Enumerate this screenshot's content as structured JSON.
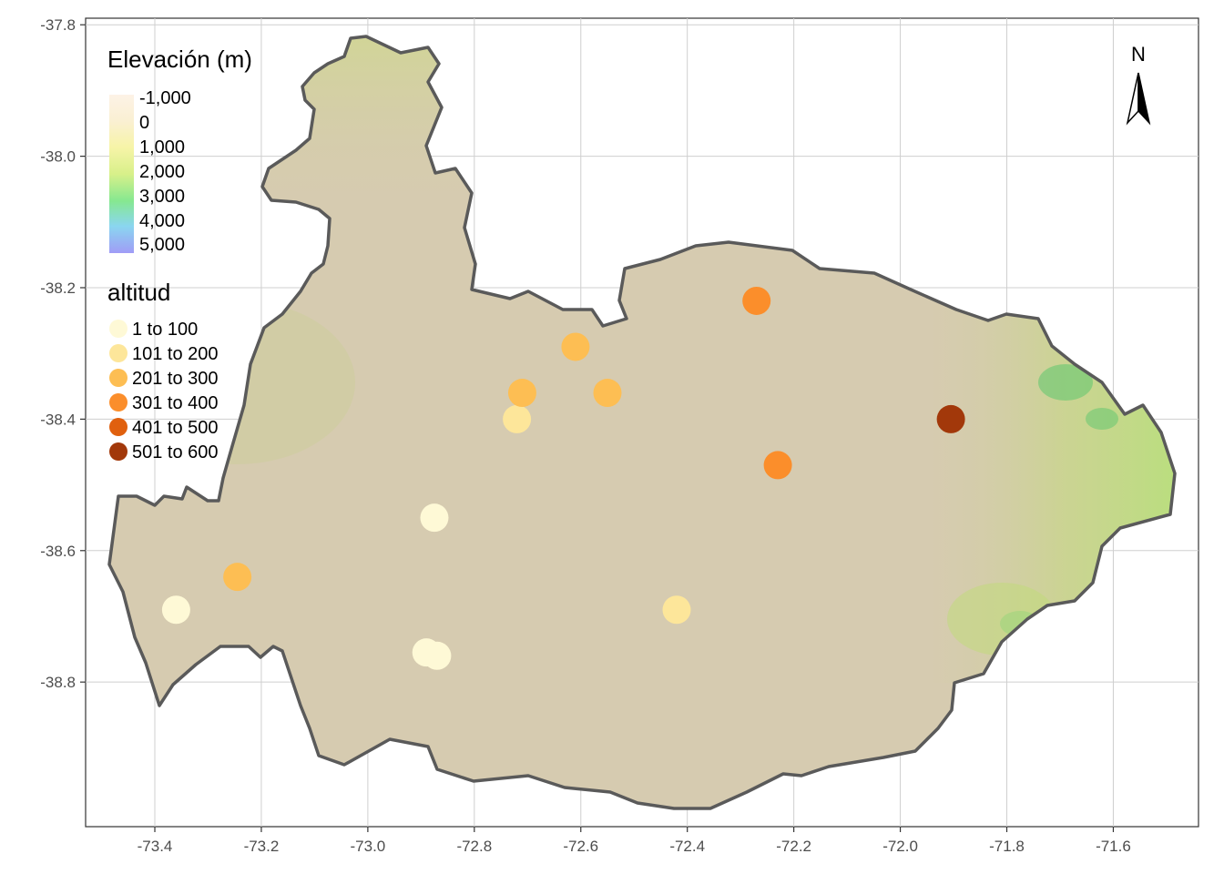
{
  "map": {
    "x_axis": {
      "range": [
        -73.53,
        -71.44
      ],
      "ticks": [
        -73.4,
        -73.2,
        -73.0,
        -72.8,
        -72.6,
        -72.4,
        -72.2,
        -72.0,
        -71.8,
        -71.6
      ],
      "tick_labels": [
        "-73.4",
        "-73.2",
        "-73.0",
        "-72.8",
        "-72.6",
        "-72.4",
        "-72.2",
        "-72.0",
        "-71.8",
        "-71.6"
      ]
    },
    "y_axis": {
      "range": [
        -39.02,
        -37.79
      ],
      "ticks": [
        -37.8,
        -38.0,
        -38.2,
        -38.4,
        -38.6,
        -38.8
      ],
      "tick_labels": [
        "-37.8",
        "-38.0",
        "-38.2",
        "-38.4",
        "-38.6",
        "-38.8"
      ]
    },
    "grid": true,
    "region_fill": "#d6cbb0",
    "region_outline_color": "#5a5a5a",
    "highland_color": "#c9d98a",
    "north_arrow": {
      "label": "N",
      "icon": "north-arrow-icon"
    }
  },
  "legend_elevation": {
    "title": "Elevación (m)",
    "labels": [
      "-1,000",
      "0",
      "1,000",
      "2,000",
      "3,000",
      "4,000",
      "5,000"
    ],
    "gradient_colors": [
      "#fdf2e6",
      "#faf0d2",
      "#f7f4a8",
      "#d8f08a",
      "#86e890",
      "#8ad6f0",
      "#a09cf6"
    ]
  },
  "legend_altitud": {
    "title": "altitud",
    "classes": [
      {
        "label": "1 to 100",
        "color": "#fef9d6"
      },
      {
        "label": "101 to 200",
        "color": "#fde69a"
      },
      {
        "label": "201 to 300",
        "color": "#fdbe53"
      },
      {
        "label": "301 to 400",
        "color": "#fb8e2b"
      },
      {
        "label": "401 to 500",
        "color": "#e0600e"
      },
      {
        "label": "501 to 600",
        "color": "#a2380a"
      }
    ]
  },
  "stations": [
    {
      "lon": -73.36,
      "lat": -38.69,
      "class": 0
    },
    {
      "lon": -73.245,
      "lat": -38.64,
      "class": 2
    },
    {
      "lon": -72.875,
      "lat": -38.55,
      "class": 0
    },
    {
      "lon": -72.89,
      "lat": -38.755,
      "class": 0
    },
    {
      "lon": -72.87,
      "lat": -38.76,
      "class": 0
    },
    {
      "lon": -72.72,
      "lat": -38.4,
      "class": 1
    },
    {
      "lon": -72.71,
      "lat": -38.36,
      "class": 2
    },
    {
      "lon": -72.61,
      "lat": -38.29,
      "class": 2
    },
    {
      "lon": -72.55,
      "lat": -38.36,
      "class": 2
    },
    {
      "lon": -72.42,
      "lat": -38.69,
      "class": 1
    },
    {
      "lon": -72.27,
      "lat": -38.22,
      "class": 3
    },
    {
      "lon": -72.23,
      "lat": -38.47,
      "class": 3
    },
    {
      "lon": -71.905,
      "lat": -38.4,
      "class": 5
    }
  ]
}
